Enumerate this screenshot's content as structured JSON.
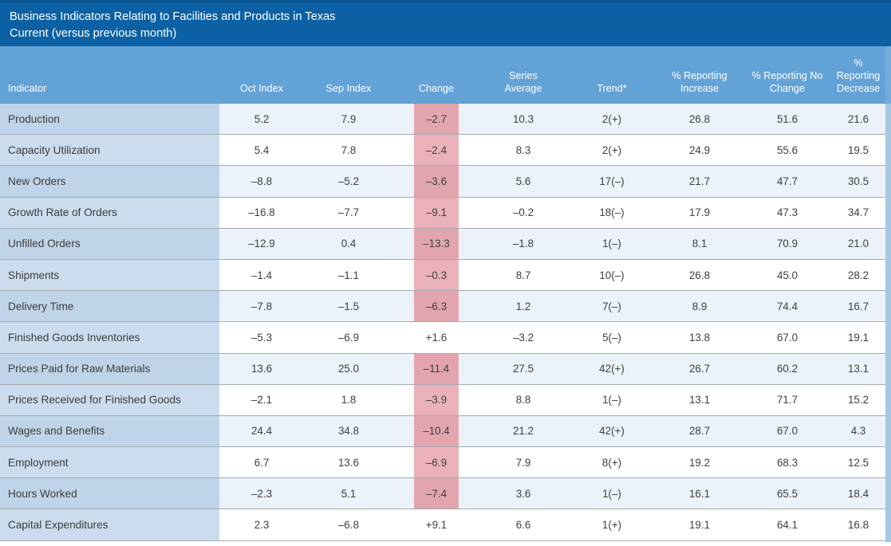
{
  "title": {
    "line1": "Business Indicators Relating to Facilities and Products in Texas",
    "line2": "Current (versus previous month)"
  },
  "table": {
    "columns": [
      "Indicator",
      "Oct Index",
      "Sep Index",
      "Change",
      "Series Average",
      "Trend*",
      "% Reporting Increase",
      "% Reporting No Change",
      "% Reporting Decrease"
    ],
    "rows": [
      {
        "indicator": "Production",
        "oct": "5.2",
        "sep": "7.9",
        "change": "–2.7",
        "change_negative": true,
        "series_avg": "10.3",
        "trend": "2(+)",
        "pct_increase": "26.8",
        "pct_no_change": "51.6",
        "pct_decrease": "21.6"
      },
      {
        "indicator": "Capacity Utilization",
        "oct": "5.4",
        "sep": "7.8",
        "change": "–2.4",
        "change_negative": true,
        "series_avg": "8.3",
        "trend": "2(+)",
        "pct_increase": "24.9",
        "pct_no_change": "55.6",
        "pct_decrease": "19.5"
      },
      {
        "indicator": "New Orders",
        "oct": "–8.8",
        "sep": "–5.2",
        "change": "–3.6",
        "change_negative": true,
        "series_avg": "5.6",
        "trend": "17(–)",
        "pct_increase": "21.7",
        "pct_no_change": "47.7",
        "pct_decrease": "30.5"
      },
      {
        "indicator": "Growth Rate of Orders",
        "oct": "–16.8",
        "sep": "–7.7",
        "change": "–9.1",
        "change_negative": true,
        "series_avg": "–0.2",
        "trend": "18(–)",
        "pct_increase": "17.9",
        "pct_no_change": "47.3",
        "pct_decrease": "34.7"
      },
      {
        "indicator": "Unfilled Orders",
        "oct": "–12.9",
        "sep": "0.4",
        "change": "–13.3",
        "change_negative": true,
        "series_avg": "–1.8",
        "trend": "1(–)",
        "pct_increase": "8.1",
        "pct_no_change": "70.9",
        "pct_decrease": "21.0"
      },
      {
        "indicator": "Shipments",
        "oct": "–1.4",
        "sep": "–1.1",
        "change": "–0.3",
        "change_negative": true,
        "series_avg": "8.7",
        "trend": "10(–)",
        "pct_increase": "26.8",
        "pct_no_change": "45.0",
        "pct_decrease": "28.2"
      },
      {
        "indicator": "Delivery Time",
        "oct": "–7.8",
        "sep": "–1.5",
        "change": "–6.3",
        "change_negative": true,
        "series_avg": "1.2",
        "trend": "7(–)",
        "pct_increase": "8.9",
        "pct_no_change": "74.4",
        "pct_decrease": "16.7"
      },
      {
        "indicator": "Finished Goods Inventories",
        "oct": "–5.3",
        "sep": "–6.9",
        "change": "+1.6",
        "change_negative": false,
        "series_avg": "–3.2",
        "trend": "5(–)",
        "pct_increase": "13.8",
        "pct_no_change": "67.0",
        "pct_decrease": "19.1"
      },
      {
        "indicator": "Prices Paid for Raw Materials",
        "oct": "13.6",
        "sep": "25.0",
        "change": "–11.4",
        "change_negative": true,
        "series_avg": "27.5",
        "trend": "42(+)",
        "pct_increase": "26.7",
        "pct_no_change": "60.2",
        "pct_decrease": "13.1"
      },
      {
        "indicator": "Prices Received for Finished Goods",
        "oct": "–2.1",
        "sep": "1.8",
        "change": "–3.9",
        "change_negative": true,
        "series_avg": "8.8",
        "trend": "1(–)",
        "pct_increase": "13.1",
        "pct_no_change": "71.7",
        "pct_decrease": "15.2"
      },
      {
        "indicator": "Wages and Benefits",
        "oct": "24.4",
        "sep": "34.8",
        "change": "–10.4",
        "change_negative": true,
        "series_avg": "21.2",
        "trend": "42(+)",
        "pct_increase": "28.7",
        "pct_no_change": "67.0",
        "pct_decrease": "4.3"
      },
      {
        "indicator": "Employment",
        "oct": "6.7",
        "sep": "13.6",
        "change": "–6.9",
        "change_negative": true,
        "series_avg": "7.9",
        "trend": "8(+)",
        "pct_increase": "19.2",
        "pct_no_change": "68.3",
        "pct_decrease": "12.5"
      },
      {
        "indicator": "Hours Worked",
        "oct": "–2.3",
        "sep": "5.1",
        "change": "–7.4",
        "change_negative": true,
        "series_avg": "3.6",
        "trend": "1(–)",
        "pct_increase": "16.1",
        "pct_no_change": "65.5",
        "pct_decrease": "18.4"
      },
      {
        "indicator": "Capital Expenditures",
        "oct": "2.3",
        "sep": "–6.8",
        "change": "+9.1",
        "change_negative": false,
        "series_avg": "6.6",
        "trend": "1(+)",
        "pct_increase": "19.1",
        "pct_no_change": "64.1",
        "pct_decrease": "16.8"
      }
    ]
  },
  "chart_data": {
    "type": "table",
    "title": "Business Indicators Relating to Facilities and Products in Texas — Current (versus previous month)",
    "columns": [
      "Indicator",
      "Oct Index",
      "Sep Index",
      "Change",
      "Series Average",
      "Trend*",
      "% Reporting Increase",
      "% Reporting No Change",
      "% Reporting Decrease"
    ],
    "rows": [
      [
        "Production",
        5.2,
        7.9,
        -2.7,
        10.3,
        "2(+)",
        26.8,
        51.6,
        21.6
      ],
      [
        "Capacity Utilization",
        5.4,
        7.8,
        -2.4,
        8.3,
        "2(+)",
        24.9,
        55.6,
        19.5
      ],
      [
        "New Orders",
        -8.8,
        -5.2,
        -3.6,
        5.6,
        "17(–)",
        21.7,
        47.7,
        30.5
      ],
      [
        "Growth Rate of Orders",
        -16.8,
        -7.7,
        -9.1,
        -0.2,
        "18(–)",
        17.9,
        47.3,
        34.7
      ],
      [
        "Unfilled Orders",
        -12.9,
        0.4,
        -13.3,
        -1.8,
        "1(–)",
        8.1,
        70.9,
        21.0
      ],
      [
        "Shipments",
        -1.4,
        -1.1,
        -0.3,
        8.7,
        "10(–)",
        26.8,
        45.0,
        28.2
      ],
      [
        "Delivery Time",
        -7.8,
        -1.5,
        -6.3,
        1.2,
        "7(–)",
        8.9,
        74.4,
        16.7
      ],
      [
        "Finished Goods Inventories",
        -5.3,
        -6.9,
        1.6,
        -3.2,
        "5(–)",
        13.8,
        67.0,
        19.1
      ],
      [
        "Prices Paid for Raw Materials",
        13.6,
        25.0,
        -11.4,
        27.5,
        "42(+)",
        26.7,
        60.2,
        13.1
      ],
      [
        "Prices Received for Finished Goods",
        -2.1,
        1.8,
        -3.9,
        8.8,
        "1(–)",
        13.1,
        71.7,
        15.2
      ],
      [
        "Wages and Benefits",
        24.4,
        34.8,
        -10.4,
        21.2,
        "42(+)",
        28.7,
        67.0,
        4.3
      ],
      [
        "Employment",
        6.7,
        13.6,
        -6.9,
        7.9,
        "8(+)",
        19.2,
        68.3,
        12.5
      ],
      [
        "Hours Worked",
        -2.3,
        5.1,
        -7.4,
        3.6,
        "1(–)",
        16.1,
        65.5,
        18.4
      ],
      [
        "Capital Expenditures",
        2.3,
        -6.8,
        9.1,
        6.6,
        "1(+)",
        19.1,
        64.1,
        16.8
      ]
    ],
    "layout_hints": {
      "negative_change_highlight": true,
      "striped_rows": true
    }
  },
  "colors": {
    "title_bar": "#0b61a4",
    "header": "#63a2d7",
    "indicator_column_odd": "#bfd4e9",
    "indicator_column_even": "#cbdcee",
    "row_stripe_odd": "#ebf2f9",
    "row_stripe_even": "#ffffff",
    "negative_change_odd": "#e2a5ae",
    "negative_change_even": "#eab1ba",
    "header_text": "#ffffff",
    "cell_text": "#3f3f3f"
  }
}
